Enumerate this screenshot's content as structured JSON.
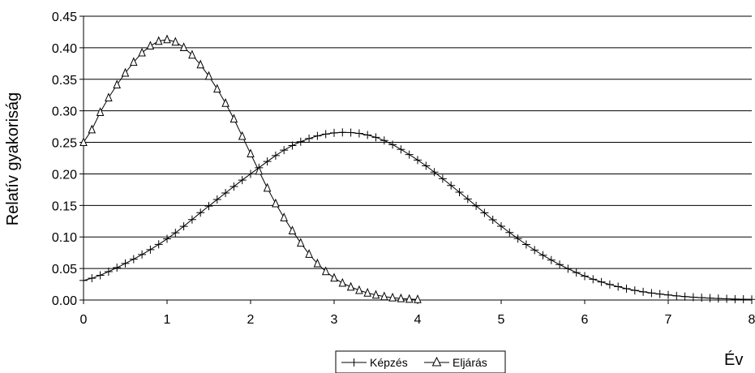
{
  "chart_data": {
    "type": "line",
    "title": "",
    "xlabel": "Év",
    "ylabel": "Relatív  gyakoriság",
    "xlim": [
      0,
      8
    ],
    "ylim": [
      0,
      0.45
    ],
    "x_ticks": [
      "0",
      "1",
      "2",
      "3",
      "4",
      "5",
      "6",
      "7",
      "8"
    ],
    "y_ticks": [
      "0.00",
      "0.05",
      "0.10",
      "0.15",
      "0.20",
      "0.25",
      "0.30",
      "0.35",
      "0.40",
      "0.45"
    ],
    "grid": "horizontal",
    "legend_position": "bottom",
    "series": [
      {
        "name": "Képzés",
        "marker": "plus",
        "color": "#000000",
        "x": [
          0,
          0.5,
          1,
          1.5,
          2,
          2.5,
          3,
          3.5,
          4,
          4.5,
          5,
          5.5,
          6,
          6.5,
          7,
          7.5,
          8
        ],
        "y": [
          0.031,
          0.058,
          0.097,
          0.149,
          0.2,
          0.245,
          0.265,
          0.258,
          0.222,
          0.171,
          0.117,
          0.071,
          0.038,
          0.018,
          0.008,
          0.003,
          0.001
        ]
      },
      {
        "name": "Eljárás",
        "marker": "triangle",
        "color": "#000000",
        "x": [
          0,
          0.25,
          0.5,
          0.75,
          1,
          1.25,
          1.5,
          1.75,
          2,
          2.25,
          2.5,
          2.75,
          3,
          3.25,
          3.5,
          3.75,
          4
        ],
        "y": [
          0.25,
          0.31,
          0.36,
          0.398,
          0.413,
          0.395,
          0.355,
          0.3,
          0.232,
          0.165,
          0.11,
          0.065,
          0.035,
          0.018,
          0.008,
          0.003,
          0.001
        ]
      }
    ]
  }
}
